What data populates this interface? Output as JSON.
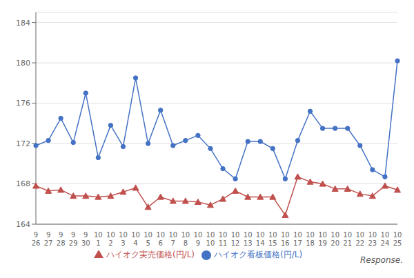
{
  "chart_data": {
    "type": "line",
    "annotation": "Response.",
    "categories": [
      "9\n26",
      "9\n27",
      "9\n28",
      "9\n29",
      "9\n30",
      "10\n1",
      "10\n2",
      "10\n3",
      "10\n4",
      "10\n5",
      "10\n6",
      "10\n7",
      "10\n8",
      "10\n9",
      "10\n10",
      "10\n11",
      "10\n12",
      "10\n13",
      "10\n14",
      "10\n15",
      "10\n16",
      "10\n17",
      "10\n18",
      "10\n19",
      "10\n20",
      "10\n21",
      "10\n22",
      "10\n23",
      "10\n24",
      "10\n25"
    ],
    "series": [
      {
        "name": "ハイオク看板価格(円/L)",
        "color": "#4472c4",
        "marker": "circle",
        "values": [
          171.8,
          172.3,
          174.5,
          172.1,
          177.0,
          170.6,
          173.8,
          171.7,
          178.5,
          172.0,
          175.3,
          171.8,
          172.3,
          172.8,
          171.5,
          169.5,
          168.5,
          172.2,
          172.2,
          171.5,
          168.5,
          172.3,
          175.2,
          173.5,
          173.5,
          173.5,
          171.8,
          169.4,
          168.7,
          180.2
        ]
      },
      {
        "name": "ハイオク実売価格(円/L)",
        "color": "#c0504d",
        "marker": "triangle",
        "values": [
          167.8,
          167.3,
          167.4,
          166.8,
          166.8,
          166.7,
          166.8,
          167.2,
          167.6,
          165.7,
          166.7,
          166.3,
          166.3,
          166.2,
          165.9,
          166.5,
          167.3,
          166.7,
          166.7,
          166.7,
          164.9,
          168.7,
          168.2,
          168.0,
          167.5,
          167.5,
          167.0,
          166.8,
          167.8,
          167.4
        ]
      }
    ],
    "ylim": [
      164,
      185
    ],
    "yticks": [
      164,
      168,
      172,
      176,
      180,
      184
    ],
    "grid": true,
    "legend": "bottom"
  }
}
